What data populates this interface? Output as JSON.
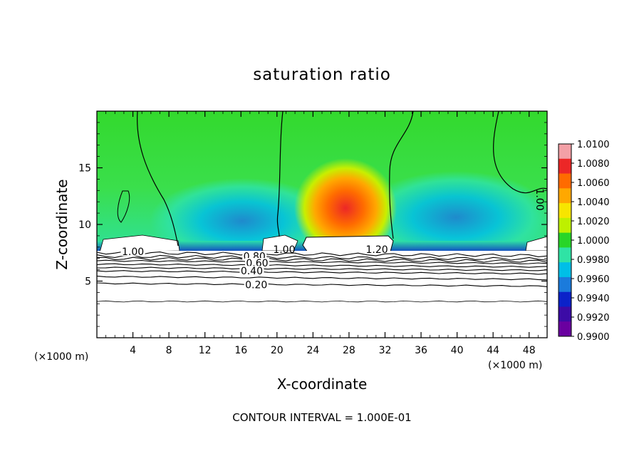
{
  "chart_data": {
    "type": "heatmap",
    "title": "saturation ratio",
    "xlabel": "X-coordinate",
    "ylabel": "Z-coordinate",
    "x_unit": "(×1000 m)",
    "x_unit_right": "(×1000 m)",
    "footer": "CONTOUR INTERVAL = 1.000E-01",
    "xlim": [
      0,
      50
    ],
    "ylim": [
      0,
      20
    ],
    "x_ticks": [
      4,
      8,
      12,
      16,
      20,
      24,
      28,
      32,
      36,
      40,
      44,
      48
    ],
    "y_ticks": [
      5,
      10,
      15
    ],
    "colorbar": {
      "min": 0.99,
      "max": 1.01,
      "ticks": [
        "1.0100",
        "1.0080",
        "1.0060",
        "1.0040",
        "1.0020",
        "1.0000",
        "0.9980",
        "0.9960",
        "0.9940",
        "0.9920",
        "0.9900"
      ],
      "colors": [
        "#f3a0a6",
        "#ec2727",
        "#ff6b00",
        "#ffa800",
        "#f7e500",
        "#bef000",
        "#28d528",
        "#2fe3a5",
        "#00bfe7",
        "#1b7bdc",
        "#0b22c9",
        "#3c0ba6",
        "#6a00a0"
      ]
    },
    "contour_labels": [
      {
        "text": "1.00",
        "x": 4.0,
        "y": 7.6
      },
      {
        "text": "0.80",
        "x": 17.5,
        "y": 7.2
      },
      {
        "text": "0.60",
        "x": 17.8,
        "y": 6.6
      },
      {
        "text": "0.40",
        "x": 17.2,
        "y": 5.9
      },
      {
        "text": "0.20",
        "x": 17.7,
        "y": 4.7
      },
      {
        "text": "1.00",
        "x": 20.8,
        "y": 7.8
      },
      {
        "text": "1.20",
        "x": 31.1,
        "y": 7.8
      },
      {
        "text": "1.00",
        "x": 49.2,
        "y": 12.2
      }
    ],
    "contour_levels_lower": [
      {
        "level": 0.2,
        "z": 4.8
      },
      {
        "level": 0.4,
        "z": 5.9
      },
      {
        "level": 0.6,
        "z": 6.5
      },
      {
        "level": 0.8,
        "z": 7.0
      }
    ],
    "field_features": [
      {
        "description_value": 1.008,
        "x": 28,
        "z": 11
      },
      {
        "description_value": 0.994,
        "x": 17,
        "z": 9
      },
      {
        "description_value": 0.994,
        "x": 38,
        "z": 9.5
      }
    ]
  }
}
